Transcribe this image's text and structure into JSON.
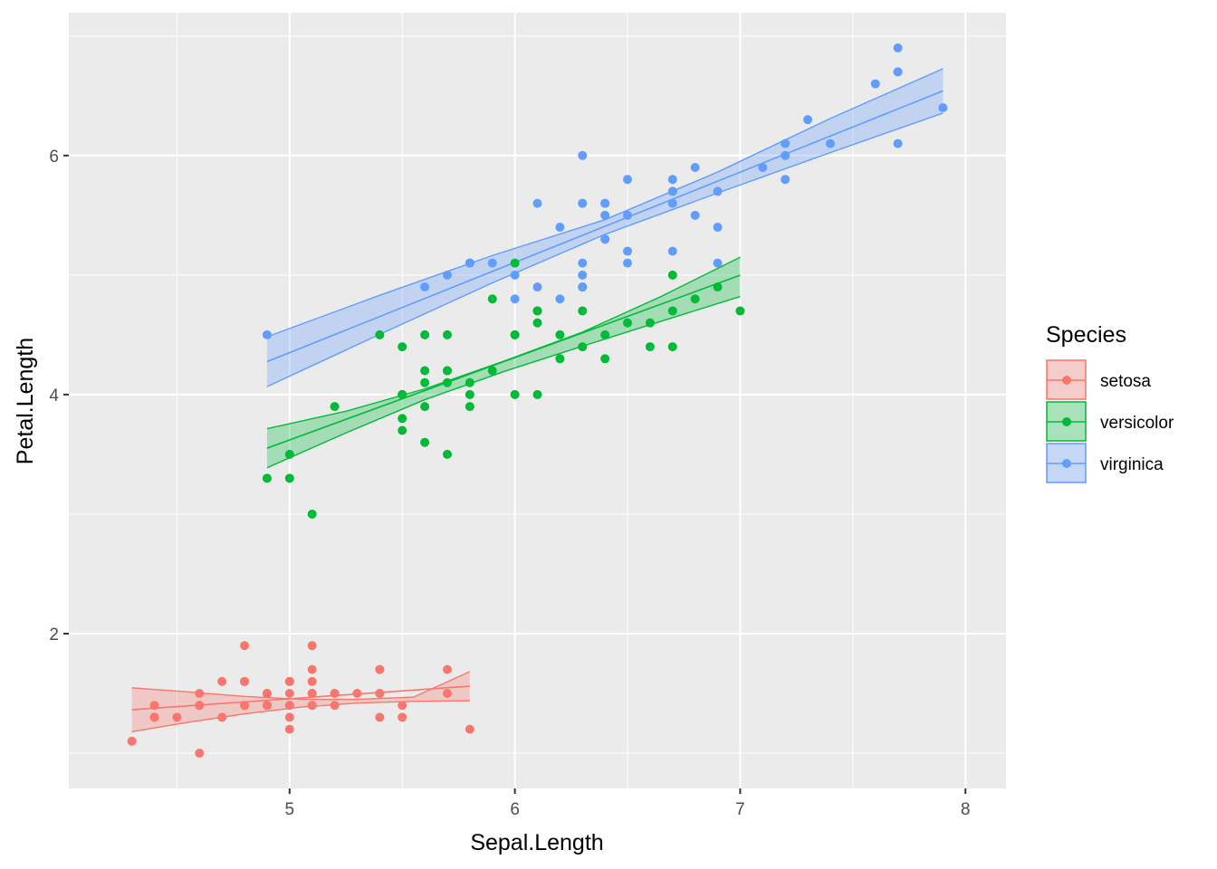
{
  "chart_data": {
    "type": "scatter",
    "xlabel": "Sepal.Length",
    "ylabel": "Petal.Length",
    "xlim": [
      4.02,
      8.18
    ],
    "ylim": [
      0.705,
      7.195
    ],
    "x_ticks": [
      5,
      6,
      7,
      8
    ],
    "y_ticks": [
      2,
      4,
      6
    ],
    "x_tick_labels": [
      "5",
      "6",
      "7",
      "8"
    ],
    "y_tick_labels": [
      "2",
      "4",
      "6"
    ],
    "grid": true,
    "legend": {
      "title": "Species",
      "position": "right"
    },
    "series": [
      {
        "name": "setosa",
        "color": "#F8766D",
        "points": [
          [
            5.1,
            1.4
          ],
          [
            4.9,
            1.4
          ],
          [
            4.7,
            1.3
          ],
          [
            4.6,
            1.5
          ],
          [
            5.0,
            1.4
          ],
          [
            5.4,
            1.7
          ],
          [
            4.6,
            1.4
          ],
          [
            5.0,
            1.5
          ],
          [
            4.4,
            1.4
          ],
          [
            4.9,
            1.5
          ],
          [
            5.4,
            1.5
          ],
          [
            4.8,
            1.6
          ],
          [
            4.8,
            1.4
          ],
          [
            4.3,
            1.1
          ],
          [
            5.8,
            1.2
          ],
          [
            5.7,
            1.5
          ],
          [
            5.4,
            1.3
          ],
          [
            5.1,
            1.4
          ],
          [
            5.7,
            1.7
          ],
          [
            5.1,
            1.5
          ],
          [
            5.4,
            1.7
          ],
          [
            5.1,
            1.5
          ],
          [
            4.6,
            1.0
          ],
          [
            5.1,
            1.7
          ],
          [
            4.8,
            1.9
          ],
          [
            5.0,
            1.6
          ],
          [
            5.0,
            1.6
          ],
          [
            5.2,
            1.5
          ],
          [
            5.2,
            1.4
          ],
          [
            4.7,
            1.6
          ],
          [
            4.8,
            1.6
          ],
          [
            5.4,
            1.5
          ],
          [
            5.2,
            1.5
          ],
          [
            5.5,
            1.4
          ],
          [
            4.9,
            1.5
          ],
          [
            5.0,
            1.2
          ],
          [
            5.5,
            1.3
          ],
          [
            4.9,
            1.4
          ],
          [
            4.4,
            1.3
          ],
          [
            5.1,
            1.5
          ],
          [
            5.0,
            1.3
          ],
          [
            4.5,
            1.3
          ],
          [
            4.4,
            1.3
          ],
          [
            5.0,
            1.6
          ],
          [
            5.1,
            1.9
          ],
          [
            4.8,
            1.4
          ],
          [
            5.1,
            1.6
          ],
          [
            4.6,
            1.4
          ],
          [
            5.3,
            1.5
          ],
          [
            5.0,
            1.4
          ]
        ],
        "fit": {
          "x": [
            4.3,
            5.8
          ],
          "y": [
            1.3633,
            1.5606
          ]
        },
        "band": {
          "x": [
            4.3,
            4.55,
            4.8,
            5.05,
            5.3,
            5.55,
            5.8
          ],
          "lower": [
            1.1797,
            1.2582,
            1.329,
            1.3853,
            1.4192,
            1.4332,
            1.4387
          ],
          "upper": [
            1.5469,
            1.5126,
            1.4747,
            1.4513,
            1.4502,
            1.4691,
            1.6825
          ]
        }
      },
      {
        "name": "versicolor",
        "color": "#00BA38",
        "points": [
          [
            7.0,
            4.7
          ],
          [
            6.4,
            4.5
          ],
          [
            6.9,
            4.9
          ],
          [
            5.5,
            4.0
          ],
          [
            6.5,
            4.6
          ],
          [
            5.7,
            4.5
          ],
          [
            6.3,
            4.7
          ],
          [
            4.9,
            3.3
          ],
          [
            6.6,
            4.6
          ],
          [
            5.2,
            3.9
          ],
          [
            5.0,
            3.5
          ],
          [
            5.9,
            4.2
          ],
          [
            6.0,
            4.0
          ],
          [
            6.1,
            4.7
          ],
          [
            5.6,
            3.6
          ],
          [
            6.7,
            4.4
          ],
          [
            5.6,
            4.5
          ],
          [
            5.8,
            4.1
          ],
          [
            6.2,
            4.5
          ],
          [
            5.6,
            3.9
          ],
          [
            5.9,
            4.8
          ],
          [
            6.1,
            4.0
          ],
          [
            6.3,
            4.9
          ],
          [
            6.1,
            4.7
          ],
          [
            6.4,
            4.3
          ],
          [
            6.6,
            4.4
          ],
          [
            6.8,
            4.8
          ],
          [
            6.7,
            5.0
          ],
          [
            6.0,
            4.5
          ],
          [
            5.7,
            3.5
          ],
          [
            5.5,
            3.8
          ],
          [
            5.5,
            3.7
          ],
          [
            5.8,
            3.9
          ],
          [
            6.0,
            5.1
          ],
          [
            5.4,
            4.5
          ],
          [
            6.0,
            4.5
          ],
          [
            6.7,
            4.7
          ],
          [
            6.3,
            4.4
          ],
          [
            5.6,
            4.1
          ],
          [
            5.5,
            4.0
          ],
          [
            5.5,
            4.4
          ],
          [
            6.1,
            4.6
          ],
          [
            5.8,
            4.0
          ],
          [
            5.0,
            3.3
          ],
          [
            5.6,
            4.2
          ],
          [
            5.7,
            4.2
          ],
          [
            5.7,
            4.2
          ],
          [
            6.2,
            4.3
          ],
          [
            5.1,
            3.0
          ],
          [
            5.7,
            4.1
          ]
        ],
        "fit": {
          "x": [
            4.9,
            7.0
          ],
          "y": [
            3.5515,
            4.9984
          ]
        },
        "band": {
          "x": [
            4.9,
            5.25,
            5.6,
            5.95,
            6.3,
            6.65,
            7.0
          ],
          "lower": [
            3.3879,
            3.6796,
            3.957,
            4.1917,
            4.4053,
            4.6138,
            4.8205
          ],
          "upper": [
            3.7151,
            3.8606,
            4.0476,
            4.2789,
            4.5227,
            4.8222,
            5.1491
          ]
        }
      },
      {
        "name": "virginica",
        "color": "#619CFF",
        "points": [
          [
            6.3,
            6.0
          ],
          [
            5.8,
            5.1
          ],
          [
            7.1,
            5.9
          ],
          [
            6.3,
            5.6
          ],
          [
            6.5,
            5.8
          ],
          [
            7.6,
            6.6
          ],
          [
            4.9,
            4.5
          ],
          [
            7.3,
            6.3
          ],
          [
            6.7,
            5.8
          ],
          [
            7.2,
            6.1
          ],
          [
            6.5,
            5.1
          ],
          [
            6.4,
            5.3
          ],
          [
            6.8,
            5.5
          ],
          [
            5.7,
            5.0
          ],
          [
            5.8,
            5.1
          ],
          [
            6.4,
            5.3
          ],
          [
            6.5,
            5.5
          ],
          [
            7.7,
            6.7
          ],
          [
            7.7,
            6.9
          ],
          [
            6.0,
            5.0
          ],
          [
            6.9,
            5.7
          ],
          [
            5.6,
            4.9
          ],
          [
            7.7,
            6.7
          ],
          [
            6.3,
            4.9
          ],
          [
            6.7,
            5.7
          ],
          [
            7.2,
            6.0
          ],
          [
            6.2,
            4.8
          ],
          [
            6.1,
            4.9
          ],
          [
            6.4,
            5.6
          ],
          [
            7.2,
            5.8
          ],
          [
            7.4,
            6.1
          ],
          [
            7.9,
            6.4
          ],
          [
            6.4,
            5.6
          ],
          [
            6.3,
            5.1
          ],
          [
            6.1,
            5.6
          ],
          [
            7.7,
            6.1
          ],
          [
            6.3,
            5.6
          ],
          [
            6.4,
            5.5
          ],
          [
            6.0,
            4.8
          ],
          [
            6.9,
            5.4
          ],
          [
            6.7,
            5.6
          ],
          [
            6.9,
            5.1
          ],
          [
            5.8,
            5.1
          ],
          [
            6.8,
            5.9
          ],
          [
            6.7,
            5.7
          ],
          [
            6.7,
            5.2
          ],
          [
            6.3,
            5.0
          ],
          [
            6.5,
            5.2
          ],
          [
            6.2,
            5.4
          ],
          [
            5.9,
            5.1
          ]
        ],
        "fit": {
          "x": [
            4.9,
            7.9
          ],
          "y": [
            4.2753,
            6.5405
          ]
        },
        "band": {
          "x": [
            4.9,
            5.4,
            5.9,
            6.4,
            6.9,
            7.4,
            7.9
          ],
          "lower": [
            4.0667,
            4.5038,
            4.9345,
            5.3403,
            5.6863,
            6.0241,
            6.3546
          ],
          "upper": [
            4.4839,
            4.8308,
            5.1635,
            5.4633,
            5.8617,
            6.3099,
            6.7264
          ]
        }
      }
    ]
  }
}
